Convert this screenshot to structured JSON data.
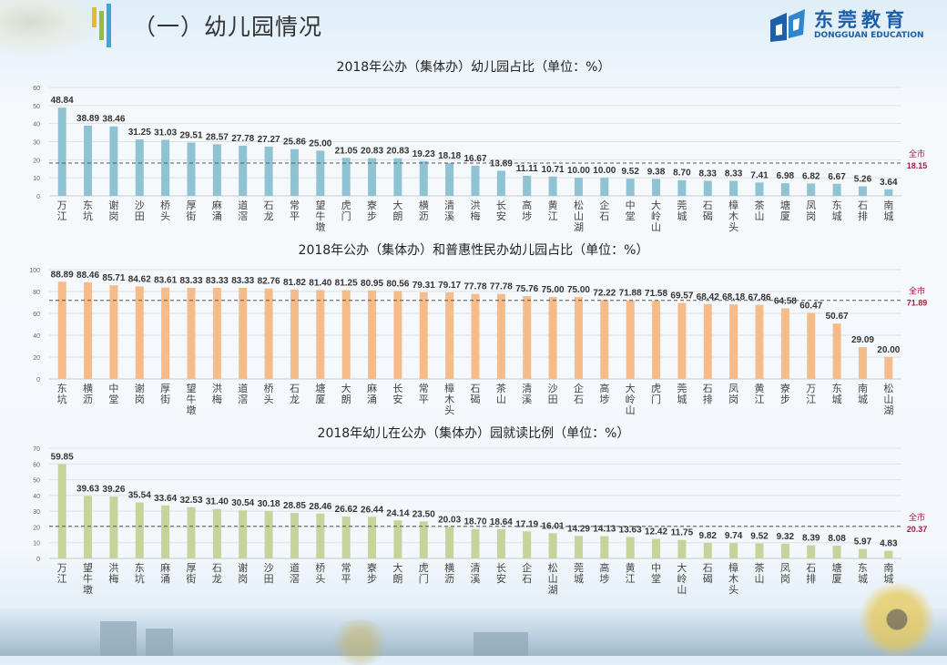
{
  "header": {
    "title": "（一）幼儿园情况",
    "logo_cn": "东莞教育",
    "logo_en": "DONGGUAN EDUCATION"
  },
  "avg_label": "全市",
  "chart_data": [
    {
      "type": "bar",
      "title": "2018年公办（集体办）幼儿园占比（单位：%）",
      "color": "#8fc3d3",
      "ylim": [
        0,
        60
      ],
      "yticks": [
        0,
        10,
        20,
        30,
        40,
        50,
        60
      ],
      "average": 18.15,
      "average_text": "18.15",
      "categories": [
        "万江",
        "东坑",
        "谢岗",
        "沙田",
        "桥头",
        "厚街",
        "麻涌",
        "道滘",
        "石龙",
        "常平",
        "望牛墩",
        "虎门",
        "寮步",
        "大朗",
        "横沥",
        "清溪",
        "洪梅",
        "长安",
        "高埗",
        "黄江",
        "松山湖",
        "企石",
        "中堂",
        "大岭山",
        "莞城",
        "石碣",
        "樟木头",
        "茶山",
        "塘厦",
        "凤岗",
        "东城",
        "石排",
        "南城"
      ],
      "values": [
        48.84,
        38.89,
        38.46,
        31.25,
        31.03,
        29.51,
        28.57,
        27.78,
        27.27,
        25.86,
        25.0,
        21.05,
        20.83,
        20.83,
        19.23,
        18.18,
        16.67,
        13.89,
        11.11,
        10.71,
        10.0,
        10.0,
        9.52,
        9.38,
        8.7,
        8.33,
        8.33,
        7.41,
        6.98,
        6.82,
        6.67,
        5.26,
        3.64
      ],
      "labels": [
        "48.84",
        "38.89",
        "38.46",
        "31.25",
        "31.03",
        "29.51",
        "28.57",
        "27.78",
        "27.27",
        "25.86",
        "25.00",
        "21.05",
        "20.83",
        "20.83",
        "19.23",
        "18.18",
        "16.67",
        "13.89",
        "11.11",
        "10.71",
        "10.00",
        "10.00",
        "9.52",
        "9.38",
        "8.70",
        "8.33",
        "8.33",
        "7.41",
        "6.98",
        "6.82",
        "6.67",
        "5.26",
        "3.64"
      ]
    },
    {
      "type": "bar",
      "title": "2018年公办（集体办）和普惠性民办幼儿园占比（单位：%）",
      "color": "#f5bc8a",
      "ylim": [
        0,
        100
      ],
      "yticks": [
        0,
        20,
        40,
        60,
        80,
        100
      ],
      "average": 71.89,
      "average_text": "71.89",
      "categories": [
        "东坑",
        "横沥",
        "中堂",
        "谢岗",
        "厚街",
        "望牛墩",
        "洪梅",
        "道滘",
        "桥头",
        "石龙",
        "塘厦",
        "大朗",
        "麻涌",
        "长安",
        "常平",
        "樟木头",
        "石碣",
        "茶山",
        "清溪",
        "沙田",
        "企石",
        "高埗",
        "大岭山",
        "虎门",
        "莞城",
        "石排",
        "凤岗",
        "黄江",
        "寮步",
        "万江",
        "东城",
        "南城",
        "松山湖"
      ],
      "values": [
        88.89,
        88.46,
        85.71,
        84.62,
        83.61,
        83.33,
        83.33,
        83.33,
        82.76,
        81.82,
        81.4,
        81.25,
        80.95,
        80.56,
        79.31,
        79.17,
        77.78,
        77.78,
        75.76,
        75.0,
        75.0,
        72.22,
        71.88,
        71.58,
        69.57,
        68.42,
        68.18,
        67.86,
        64.58,
        60.47,
        50.67,
        29.09,
        20.0
      ],
      "labels": [
        "88.89",
        "88.46",
        "85.71",
        "84.62",
        "83.61",
        "83.33",
        "83.33",
        "83.33",
        "82.76",
        "81.82",
        "81.40",
        "81.25",
        "80.95",
        "80.56",
        "79.31",
        "79.17",
        "77.78",
        "77.78",
        "75.76",
        "75.00",
        "75.00",
        "72.22",
        "71.88",
        "71.58",
        "69.57",
        "68.42",
        "68.18",
        "67.86",
        "64.58",
        "60.47",
        "50.67",
        "29.09",
        "20.00"
      ]
    },
    {
      "type": "bar",
      "title": "2018年幼儿在公办（集体办）园就读比例（单位：%）",
      "color": "#c4d49b",
      "ylim": [
        0,
        70
      ],
      "yticks": [
        0,
        10,
        20,
        30,
        40,
        50,
        60,
        70
      ],
      "average": 20.37,
      "average_text": "20.37",
      "categories": [
        "万江",
        "望牛墩",
        "洪梅",
        "东坑",
        "麻涌",
        "厚街",
        "石龙",
        "谢岗",
        "沙田",
        "道滘",
        "桥头",
        "常平",
        "寮步",
        "大朗",
        "虎门",
        "横沥",
        "清溪",
        "长安",
        "企石",
        "松山湖",
        "莞城",
        "高埗",
        "黄江",
        "中堂",
        "大岭山",
        "石碣",
        "樟木头",
        "茶山",
        "凤岗",
        "石排",
        "塘厦",
        "东城",
        "南城"
      ],
      "values": [
        59.85,
        39.63,
        39.26,
        35.54,
        33.64,
        32.53,
        31.4,
        30.54,
        30.18,
        28.85,
        28.46,
        26.62,
        26.44,
        24.14,
        23.5,
        20.03,
        18.7,
        18.64,
        17.19,
        16.01,
        14.29,
        14.13,
        13.63,
        12.42,
        11.75,
        9.82,
        9.74,
        9.52,
        9.32,
        8.39,
        8.08,
        5.97,
        4.83
      ],
      "labels": [
        "59.85",
        "39.63",
        "39.26",
        "35.54",
        "33.64",
        "32.53",
        "31.40",
        "30.54",
        "30.18",
        "28.85",
        "28.46",
        "26.62",
        "26.44",
        "24.14",
        "23.50",
        "20.03",
        "18.70",
        "18.64",
        "17.19",
        "16.01",
        "14.29",
        "14.13",
        "13.63",
        "12.42",
        "11.75",
        "9.82",
        "9.74",
        "9.52",
        "9.32",
        "8.39",
        "8.08",
        "5.97",
        "4.83"
      ]
    }
  ]
}
